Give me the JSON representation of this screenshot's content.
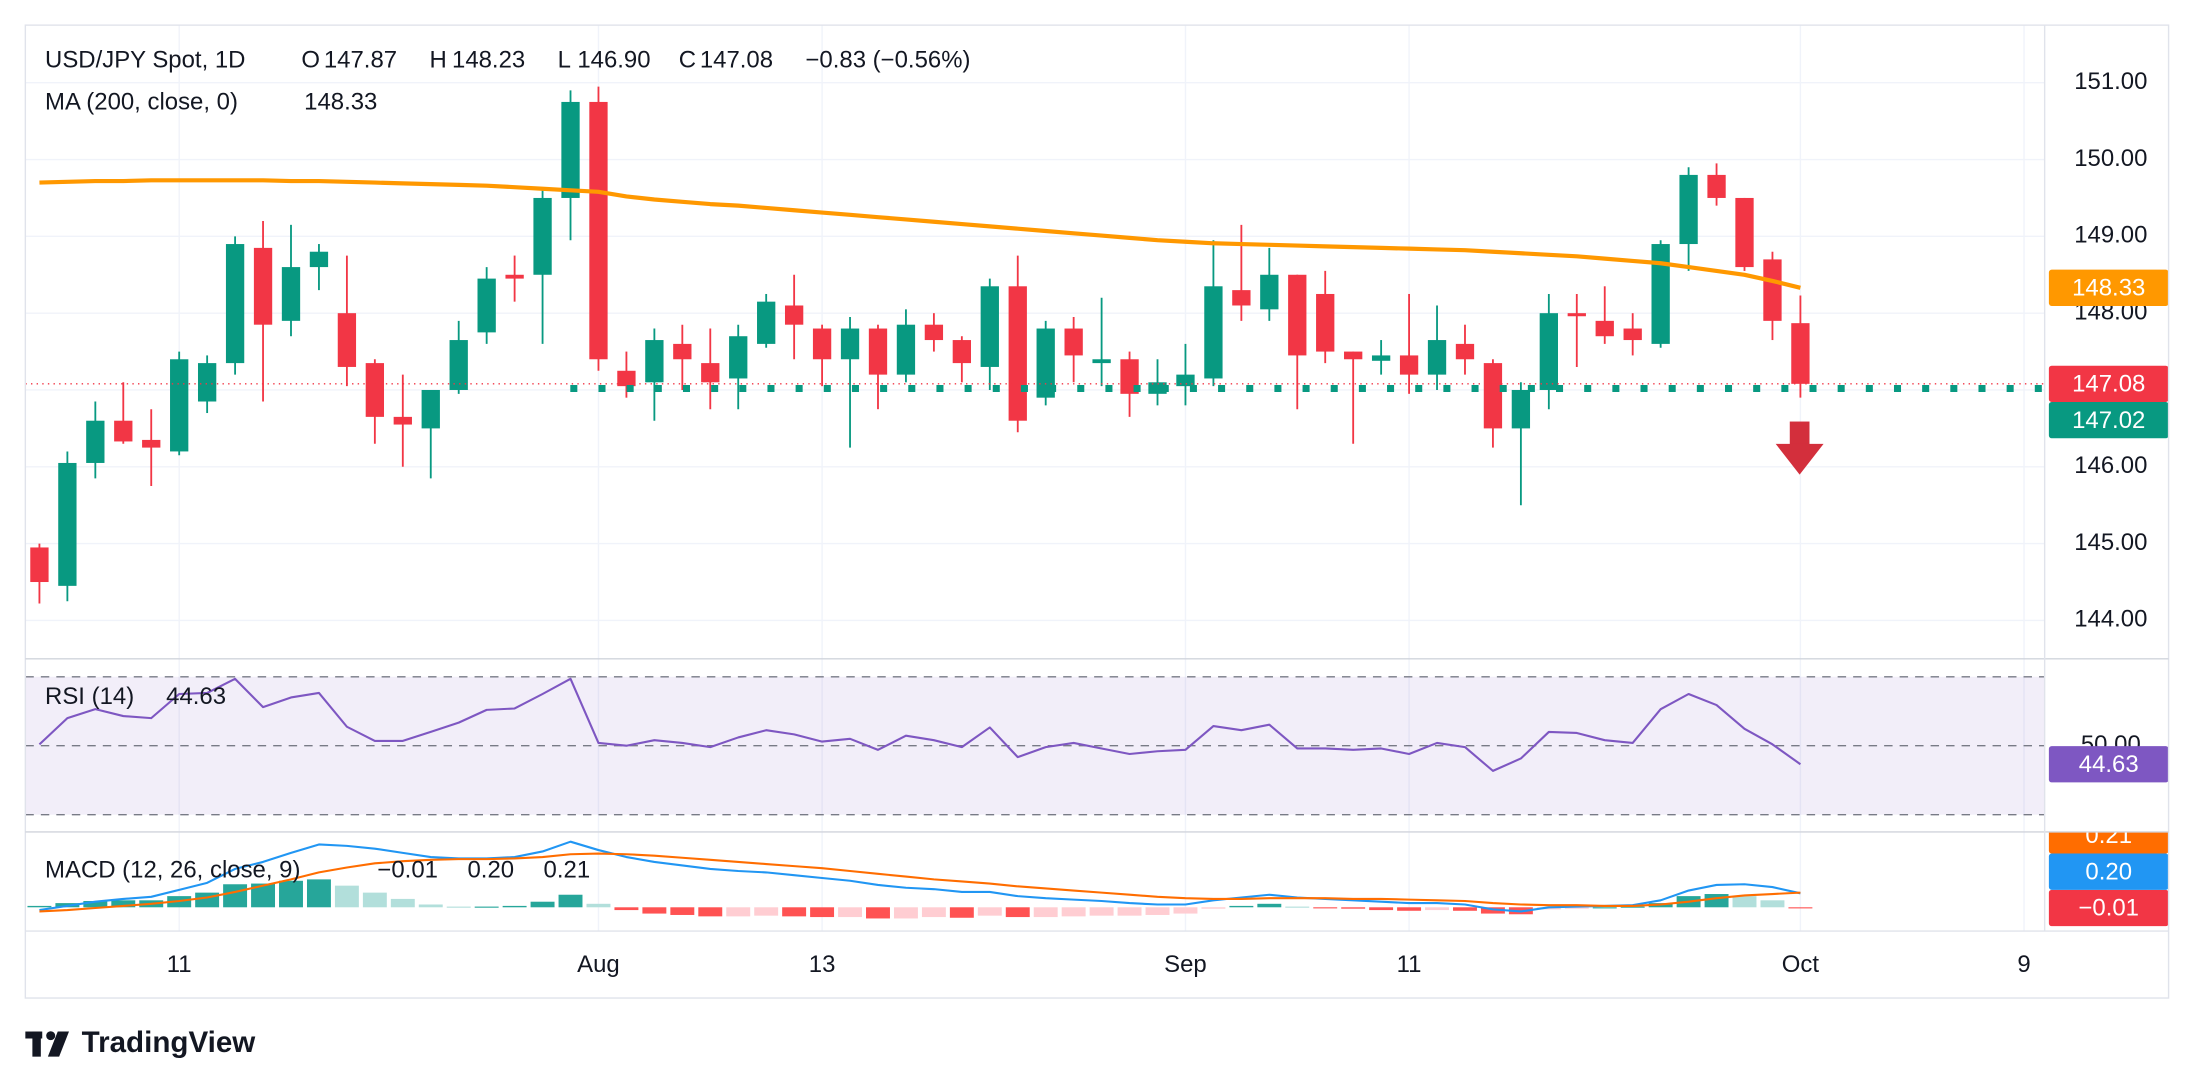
{
  "chart_data": [
    {
      "type": "candlestick",
      "title": "USD/JPY Spot, 1D",
      "ohlc_legend": [
        {
          "label": "O",
          "value": "147.87"
        },
        {
          "label": "H",
          "value": "148.23"
        },
        {
          "label": "L",
          "value": "146.90"
        },
        {
          "label": "C",
          "value": "147.08"
        }
      ],
      "change": "−0.83 (−0.56%)",
      "legend_color": "#f23645",
      "categories": [
        null,
        null,
        null,
        null,
        null,
        "11",
        null,
        null,
        null,
        null,
        null,
        null,
        null,
        null,
        null,
        null,
        null,
        null,
        null,
        null,
        "Aug",
        null,
        null,
        null,
        null,
        null,
        null,
        null,
        "13",
        null,
        null,
        null,
        null,
        null,
        null,
        null,
        null,
        null,
        null,
        null,
        null,
        "Sep",
        null,
        null,
        null,
        null,
        null,
        null,
        null,
        "11",
        null,
        null,
        null,
        null,
        null,
        null,
        null,
        null,
        null,
        null,
        null,
        null,
        null,
        "Oct",
        null,
        null,
        null,
        null,
        null,
        null,
        null,
        "9"
      ],
      "open": [
        144.95,
        144.45,
        146.05,
        146.6,
        146.35,
        146.2,
        146.85,
        147.35,
        148.85,
        147.9,
        148.6,
        148.0,
        147.35,
        146.65,
        146.5,
        147.0,
        147.75,
        148.5,
        148.5,
        149.5,
        150.75,
        147.25,
        147.1,
        147.6,
        147.35,
        147.15,
        147.6,
        148.1,
        147.8,
        147.4,
        147.8,
        147.2,
        147.85,
        147.65,
        147.3,
        148.35,
        146.9,
        147.8,
        147.35,
        147.4,
        146.95,
        147.05,
        147.15,
        148.3,
        148.05,
        148.5,
        148.25,
        147.5,
        147.38,
        147.45,
        147.2,
        147.6,
        147.35,
        146.5,
        147.0,
        148.0,
        147.9,
        147.8,
        147.6,
        148.9,
        149.8,
        149.5,
        148.7,
        147.87,
        null,
        null,
        null,
        null,
        null,
        null,
        null,
        null
      ],
      "high": [
        145.0,
        146.2,
        146.85,
        147.1,
        146.75,
        147.5,
        147.45,
        149.0,
        149.2,
        149.15,
        148.9,
        148.75,
        147.4,
        147.2,
        147.0,
        147.9,
        148.6,
        148.75,
        149.6,
        150.9,
        150.95,
        147.5,
        147.8,
        147.85,
        147.8,
        147.85,
        148.25,
        148.5,
        147.85,
        147.95,
        147.85,
        148.05,
        148.0,
        147.7,
        148.45,
        148.75,
        147.9,
        147.95,
        148.2,
        147.5,
        147.4,
        147.6,
        148.95,
        149.15,
        148.85,
        148.5,
        148.55,
        147.5,
        147.65,
        148.25,
        148.1,
        147.85,
        147.4,
        147.1,
        148.25,
        148.25,
        148.35,
        148.0,
        148.95,
        149.9,
        149.95,
        149.5,
        148.8,
        148.23,
        null,
        null,
        null,
        null,
        null,
        null,
        null,
        null
      ],
      "low": [
        144.22,
        144.25,
        145.85,
        146.3,
        145.75,
        146.15,
        146.7,
        147.2,
        146.85,
        147.7,
        148.3,
        147.05,
        146.3,
        146.0,
        145.85,
        146.95,
        147.6,
        148.15,
        147.6,
        148.95,
        147.25,
        146.9,
        146.6,
        147.0,
        146.75,
        146.75,
        147.55,
        147.4,
        147.05,
        146.25,
        146.75,
        147.1,
        147.5,
        147.1,
        147.0,
        146.45,
        146.8,
        147.1,
        147.05,
        146.65,
        146.8,
        146.8,
        147.05,
        147.9,
        147.9,
        146.75,
        147.35,
        146.3,
        147.2,
        146.95,
        147.0,
        147.2,
        146.25,
        145.5,
        146.75,
        147.3,
        147.6,
        147.45,
        147.55,
        148.55,
        149.4,
        148.55,
        147.65,
        146.9,
        null,
        null,
        null,
        null,
        null,
        null,
        null,
        null
      ],
      "close": [
        144.5,
        146.05,
        146.6,
        146.33,
        146.25,
        147.4,
        147.35,
        148.9,
        147.85,
        148.6,
        148.8,
        147.3,
        146.65,
        146.55,
        147.0,
        147.65,
        148.45,
        148.45,
        149.5,
        150.75,
        147.4,
        147.05,
        147.65,
        147.4,
        147.1,
        147.7,
        148.15,
        147.85,
        147.4,
        147.8,
        147.2,
        147.85,
        147.65,
        147.35,
        148.35,
        146.6,
        147.8,
        147.45,
        147.4,
        146.95,
        147.1,
        147.2,
        148.35,
        148.1,
        148.5,
        147.45,
        147.5,
        147.4,
        147.45,
        147.2,
        147.65,
        147.4,
        146.5,
        147.0,
        148.0,
        147.96,
        147.7,
        147.65,
        148.9,
        149.8,
        149.5,
        148.6,
        147.9,
        147.08,
        null,
        null,
        null,
        null,
        null,
        null,
        null,
        null
      ],
      "up_color": "#089981",
      "down_color": "#f23645",
      "overlays": [
        {
          "name": "MA (200, close, 0)",
          "color": "#ff9800",
          "legend_value": "148.33",
          "values": [
            149.7,
            149.71,
            149.72,
            149.72,
            149.73,
            149.73,
            149.73,
            149.73,
            149.73,
            149.72,
            149.72,
            149.71,
            149.7,
            149.69,
            149.68,
            149.67,
            149.66,
            149.64,
            149.62,
            149.6,
            149.58,
            149.52,
            149.48,
            149.45,
            149.42,
            149.4,
            149.37,
            149.34,
            149.31,
            149.28,
            149.25,
            149.22,
            149.19,
            149.16,
            149.13,
            149.1,
            149.07,
            149.04,
            149.01,
            148.98,
            148.95,
            148.93,
            148.91,
            148.9,
            148.89,
            148.88,
            148.87,
            148.86,
            148.85,
            148.84,
            148.83,
            148.82,
            148.8,
            148.78,
            148.76,
            148.74,
            148.71,
            148.68,
            148.65,
            148.6,
            148.55,
            148.5,
            148.42,
            148.33,
            null,
            null,
            null,
            null,
            null,
            null,
            null,
            null
          ]
        }
      ],
      "ylim": [
        143.5,
        151.75
      ],
      "yticks": [
        {
          "value": 144,
          "label": "144.00"
        },
        {
          "value": 145,
          "label": "145.00"
        },
        {
          "value": 146,
          "label": "146.00"
        },
        {
          "value": 147,
          "label": "147.00"
        },
        {
          "value": 148,
          "label": "148.00"
        },
        {
          "value": 149,
          "label": "149.00"
        },
        {
          "value": 150,
          "label": "150.00"
        },
        {
          "value": 151,
          "label": "151.00"
        }
      ],
      "grid": true,
      "price_labels": [
        {
          "value": 147.08,
          "label": "147.08",
          "color": "#f23645",
          "line": "dotted"
        },
        {
          "value": 147.02,
          "label": "147.02",
          "color": "#089981",
          "line": "squares"
        },
        {
          "value": 148.33,
          "label": "148.33",
          "color": "#ff9800"
        }
      ]
    },
    {
      "type": "line",
      "series": [
        {
          "name": "RSI (14)",
          "color": "#7e57c2",
          "legend_value": "44.63",
          "values": [
            50.4,
            58,
            60.6,
            58.6,
            58,
            65,
            65.3,
            69.4,
            61.2,
            64,
            65.3,
            55.5,
            51.4,
            51.4,
            54,
            56.7,
            60.4,
            60.8,
            65,
            69.4,
            50.8,
            50,
            51.6,
            50.8,
            49.6,
            52.4,
            54.5,
            53.3,
            51.2,
            52,
            48.8,
            52.9,
            51.6,
            49.6,
            55.3,
            46.7,
            49.6,
            50.8,
            49.2,
            47.6,
            48.4,
            48.8,
            55.7,
            54.5,
            56.1,
            49.2,
            49.2,
            48.8,
            49.2,
            47.6,
            50.8,
            49.6,
            42.7,
            46.3,
            54,
            53.7,
            51.6,
            50.8,
            60.6,
            65,
            61.8,
            54.9,
            50.4,
            44.63,
            null,
            null,
            null,
            null,
            null,
            null,
            null,
            null
          ]
        }
      ],
      "ylim": [
        25,
        75.2
      ],
      "yticks": [
        {
          "value": 50,
          "label": "50.00"
        }
      ],
      "levels": [
        70,
        50,
        30
      ],
      "band": [
        30,
        70
      ],
      "band_color": "#7e57c2",
      "price_labels": [
        {
          "value": 44.63,
          "label": "44.63",
          "color": "#7e57c2"
        }
      ]
    },
    {
      "type": "macd",
      "title": "MACD (12, 26, close, 9)",
      "series": [
        {
          "colors": [
            "#26a69a",
            "#b2dfdb",
            "#ffcdd2",
            "#ff5252"
          ],
          "legend_value": "−0.01",
          "legend_color": "#f23645",
          "values": [
            0.02,
            0.06,
            0.09,
            0.1,
            0.1,
            0.16,
            0.21,
            0.33,
            0.34,
            0.38,
            0.4,
            0.31,
            0.21,
            0.12,
            0.04,
            0.01,
            0.01,
            0.02,
            0.08,
            0.18,
            0.05,
            -0.04,
            -0.09,
            -0.11,
            -0.13,
            -0.13,
            -0.12,
            -0.13,
            -0.14,
            -0.14,
            -0.16,
            -0.16,
            -0.14,
            -0.15,
            -0.12,
            -0.14,
            -0.14,
            -0.13,
            -0.12,
            -0.12,
            -0.11,
            -0.09,
            -0.02,
            0.02,
            0.05,
            0.01,
            -0.01,
            -0.02,
            -0.04,
            -0.05,
            -0.04,
            -0.05,
            -0.09,
            -0.1,
            -0.03,
            -0.02,
            0.0,
            0.01,
            0.06,
            0.16,
            0.19,
            0.16,
            0.1,
            -0.01,
            null,
            null,
            null,
            null,
            null,
            null,
            null,
            null
          ]
        },
        {
          "color": "#2196f3",
          "legend_value": "0.20",
          "values": [
            -0.04,
            0.02,
            0.08,
            0.12,
            0.15,
            0.25,
            0.35,
            0.55,
            0.65,
            0.78,
            0.9,
            0.88,
            0.84,
            0.78,
            0.72,
            0.7,
            0.7,
            0.72,
            0.8,
            0.94,
            0.82,
            0.72,
            0.65,
            0.6,
            0.55,
            0.52,
            0.5,
            0.46,
            0.42,
            0.38,
            0.32,
            0.28,
            0.26,
            0.22,
            0.22,
            0.16,
            0.13,
            0.11,
            0.09,
            0.06,
            0.04,
            0.04,
            0.1,
            0.14,
            0.18,
            0.14,
            0.12,
            0.1,
            0.08,
            0.06,
            0.06,
            0.04,
            -0.03,
            -0.06,
            0.0,
            0.01,
            0.02,
            0.03,
            0.1,
            0.24,
            0.32,
            0.33,
            0.29,
            0.2,
            null,
            null,
            null,
            null,
            null,
            null,
            null,
            null
          ]
        },
        {
          "color": "#ff6d00",
          "legend_value": "0.21",
          "values": [
            -0.06,
            -0.04,
            -0.01,
            0.02,
            0.05,
            0.09,
            0.14,
            0.22,
            0.31,
            0.4,
            0.5,
            0.57,
            0.63,
            0.66,
            0.68,
            0.69,
            0.69,
            0.7,
            0.72,
            0.76,
            0.77,
            0.76,
            0.74,
            0.71,
            0.68,
            0.65,
            0.62,
            0.59,
            0.56,
            0.52,
            0.48,
            0.44,
            0.4,
            0.37,
            0.34,
            0.3,
            0.27,
            0.24,
            0.21,
            0.18,
            0.15,
            0.13,
            0.12,
            0.12,
            0.13,
            0.13,
            0.13,
            0.12,
            0.12,
            0.11,
            0.1,
            0.09,
            0.06,
            0.04,
            0.03,
            0.03,
            0.02,
            0.02,
            0.04,
            0.08,
            0.13,
            0.17,
            0.19,
            0.21,
            null,
            null,
            null,
            null,
            null,
            null,
            null,
            null
          ]
        }
      ],
      "ylim": [
        -0.34,
        1.08
      ],
      "price_labels": [
        {
          "value": -0.01,
          "label": "−0.01",
          "color": "#f23645"
        },
        {
          "value": 0.2,
          "label": "0.20",
          "color": "#2196f3"
        },
        {
          "value": 0.21,
          "label": "0.21",
          "color": "#ff6d00"
        }
      ]
    }
  ],
  "footer": {
    "brand": "TradingView"
  }
}
